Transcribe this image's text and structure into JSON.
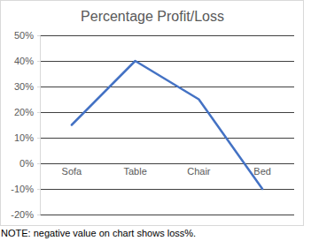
{
  "chart_data": {
    "type": "line",
    "title": "Percentage Profit/Loss",
    "categories": [
      "Sofa",
      "Table",
      "Chair",
      "Bed"
    ],
    "values": [
      15,
      40,
      25,
      -10
    ],
    "color": "#4472c4",
    "ylim": [
      -20,
      50
    ],
    "yticks": [
      {
        "value": -20,
        "label": "-20%"
      },
      {
        "value": -10,
        "label": "-10%"
      },
      {
        "value": 0,
        "label": "0%"
      },
      {
        "value": 10,
        "label": "10%"
      },
      {
        "value": 20,
        "label": "20%"
      },
      {
        "value": 30,
        "label": "30%"
      },
      {
        "value": 40,
        "label": "40%"
      },
      {
        "value": 50,
        "label": "50%"
      }
    ],
    "grid": true,
    "annotations": [
      "NOTE: negative value on chart shows loss%."
    ]
  }
}
